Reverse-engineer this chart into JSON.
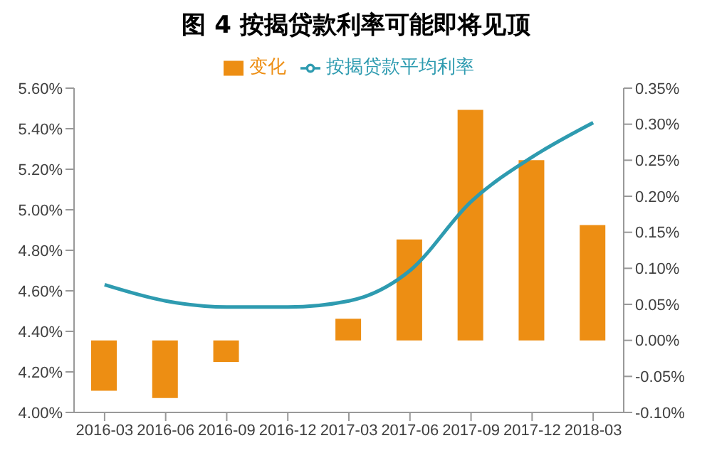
{
  "chart_data": {
    "type": "bar",
    "title": "图 4 按揭贷款利率可能即将见顶",
    "categories": [
      "2016-03",
      "2016-06",
      "2016-09",
      "2016-12",
      "2017-03",
      "2017-06",
      "2017-09",
      "2017-12",
      "2018-03"
    ],
    "series": [
      {
        "name": "变化",
        "axis": "y2",
        "color": "#ed8e13",
        "values": [
          -0.07,
          -0.08,
          -0.03,
          0,
          0.03,
          0.14,
          0.32,
          0.25,
          0.16
        ]
      },
      {
        "name": "按揭贷款平均利率",
        "type": "line",
        "axis": "y",
        "color": "#2e9bb0",
        "values": [
          4.63,
          4.55,
          4.52,
          4.52,
          4.55,
          4.7,
          5.04,
          5.26,
          5.43
        ]
      }
    ],
    "ylim": [
      4.0,
      5.6
    ],
    "yticks": [
      {
        "value": 4.0,
        "label": "4.00%"
      },
      {
        "value": 4.2,
        "label": "4.20%"
      },
      {
        "value": 4.4,
        "label": "4.40%"
      },
      {
        "value": 4.6,
        "label": "4.60%"
      },
      {
        "value": 4.8,
        "label": "4.80%"
      },
      {
        "value": 5.0,
        "label": "5.00%"
      },
      {
        "value": 5.2,
        "label": "5.20%"
      },
      {
        "value": 5.4,
        "label": "5.40%"
      },
      {
        "value": 5.6,
        "label": "5.60%"
      }
    ],
    "y2lim": [
      -0.1,
      0.35
    ],
    "y2ticks": [
      {
        "value": -0.1,
        "label": "-0.10%"
      },
      {
        "value": -0.05,
        "label": "-0.05%"
      },
      {
        "value": 0,
        "label": "0.00%"
      },
      {
        "value": 0.05,
        "label": "0.05%"
      },
      {
        "value": 0.1,
        "label": "0.10%"
      },
      {
        "value": 0.15,
        "label": "0.15%"
      },
      {
        "value": 0.2,
        "label": "0.20%"
      },
      {
        "value": 0.25,
        "label": "0.25%"
      },
      {
        "value": 0.3,
        "label": "0.30%"
      },
      {
        "value": 0.35,
        "label": "0.35%"
      }
    ],
    "grid": false,
    "legend": "top",
    "marker": "none",
    "line_style": "solid"
  }
}
